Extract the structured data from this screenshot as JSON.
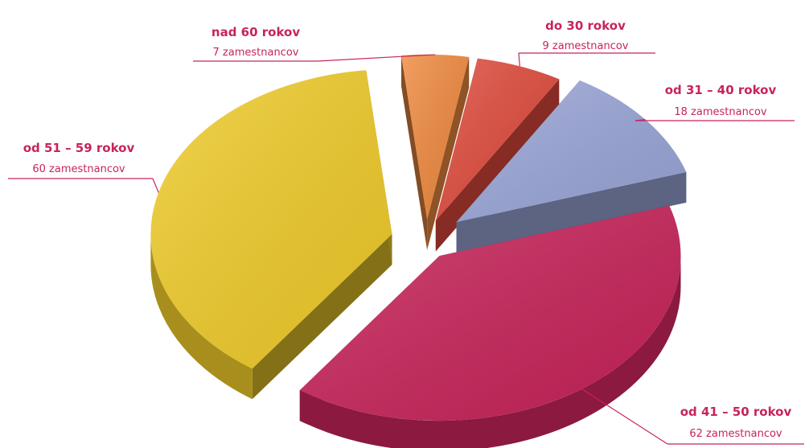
{
  "chart_data": {
    "type": "pie",
    "style": "3d-exploded",
    "categories": [
      "do 30 rokov",
      "od 31 – 40 rokov",
      "od 41 – 50 rokov",
      "od 51 – 59 rokov",
      "nad 60 rokov"
    ],
    "values": [
      9,
      18,
      62,
      60,
      7
    ],
    "value_labels": [
      "9 zamestnancov",
      "18 zamestnancov",
      "62 zamestnancov",
      "60 zamestnancov",
      "7 zamestnancov"
    ],
    "colors": [
      "#e04a3c",
      "#9aa6d8",
      "#c8245a",
      "#f0cc2a",
      "#f08a40"
    ],
    "label_color": "#c8245a"
  }
}
